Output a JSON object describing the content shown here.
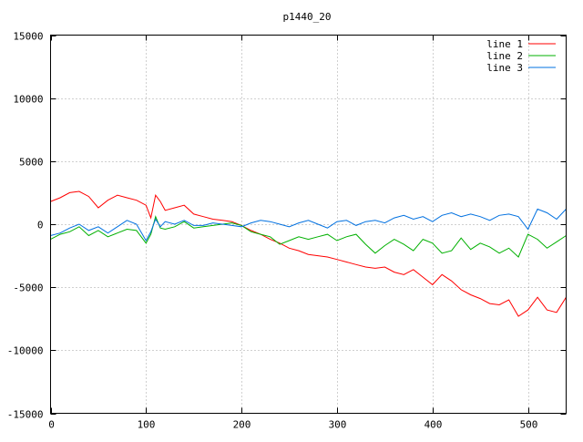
{
  "chart_data": {
    "type": "line",
    "title": "p1440_20",
    "xlabel": "",
    "ylabel": "",
    "xlim": [
      0,
      540
    ],
    "ylim": [
      -15000,
      15000
    ],
    "x_ticks": [
      0,
      100,
      200,
      300,
      400,
      500
    ],
    "y_ticks": [
      -15000,
      -10000,
      -5000,
      0,
      5000,
      10000,
      15000
    ],
    "grid": true,
    "legend_position": "top-right",
    "x": [
      0,
      10,
      20,
      30,
      40,
      50,
      60,
      70,
      80,
      90,
      100,
      105,
      110,
      115,
      120,
      130,
      140,
      150,
      160,
      170,
      180,
      190,
      200,
      210,
      220,
      230,
      240,
      250,
      260,
      270,
      280,
      290,
      300,
      310,
      320,
      330,
      340,
      350,
      360,
      370,
      380,
      390,
      400,
      410,
      420,
      430,
      440,
      450,
      460,
      470,
      480,
      490,
      500,
      510,
      520,
      530,
      540
    ],
    "series": [
      {
        "name": "line 1",
        "color": "#ff0000",
        "values": [
          1800,
          2100,
          2500,
          2600,
          2200,
          1300,
          1900,
          2300,
          2100,
          1900,
          1500,
          500,
          2300,
          1800,
          1100,
          1300,
          1500,
          800,
          600,
          400,
          300,
          200,
          -100,
          -500,
          -800,
          -1200,
          -1500,
          -1900,
          -2100,
          -2400,
          -2500,
          -2600,
          -2800,
          -3000,
          -3200,
          -3400,
          -3500,
          -3400,
          -3800,
          -4000,
          -3600,
          -4200,
          -4800,
          -4000,
          -4500,
          -5200,
          -5600,
          -5900,
          -6300,
          -6400,
          -6000,
          -7300,
          -6800,
          -5800,
          -6800,
          -7000,
          -5800
        ]
      },
      {
        "name": "line 2",
        "color": "#00b000",
        "values": [
          -1200,
          -800,
          -600,
          -200,
          -900,
          -500,
          -1000,
          -700,
          -400,
          -500,
          -1500,
          -800,
          600,
          -300,
          -400,
          -200,
          200,
          -300,
          -200,
          -100,
          0,
          100,
          -100,
          -600,
          -800,
          -1000,
          -1600,
          -1300,
          -1000,
          -1200,
          -1000,
          -800,
          -1300,
          -1000,
          -800,
          -1600,
          -2300,
          -1700,
          -1200,
          -1600,
          -2100,
          -1200,
          -1500,
          -2300,
          -2100,
          -1100,
          -2000,
          -1500,
          -1800,
          -2300,
          -1900,
          -2600,
          -800,
          -1200,
          -1900,
          -1400,
          -900
        ]
      },
      {
        "name": "line 3",
        "color": "#0070e0",
        "values": [
          -900,
          -700,
          -300,
          0,
          -500,
          -200,
          -700,
          -200,
          300,
          0,
          -1300,
          -600,
          400,
          -200,
          200,
          0,
          300,
          -100,
          -100,
          100,
          0,
          -100,
          -200,
          100,
          300,
          200,
          0,
          -200,
          100,
          300,
          0,
          -300,
          200,
          300,
          -100,
          200,
          300,
          100,
          500,
          700,
          400,
          600,
          200,
          700,
          900,
          600,
          800,
          600,
          300,
          700,
          800,
          600,
          -400,
          1200,
          900,
          400,
          1200
        ]
      }
    ]
  }
}
